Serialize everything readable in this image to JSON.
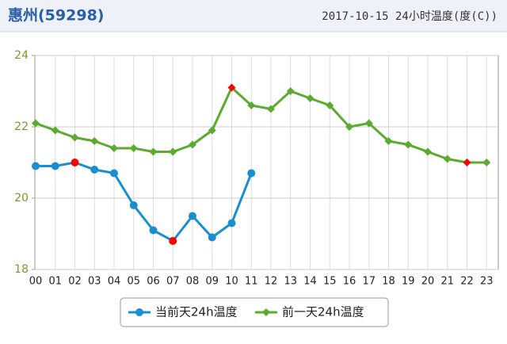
{
  "chart_data": {
    "type": "line",
    "title": "惠州(59298)",
    "subtitle": "2017-10-15 24小时温度(度(C))",
    "categories": [
      "00",
      "01",
      "02",
      "03",
      "04",
      "05",
      "06",
      "07",
      "08",
      "09",
      "10",
      "11",
      "12",
      "13",
      "14",
      "15",
      "16",
      "17",
      "18",
      "19",
      "20",
      "21",
      "22",
      "23"
    ],
    "series": [
      {
        "name": "当前天24h温度",
        "color": "#1a8fcf",
        "values": [
          20.9,
          20.9,
          21.0,
          20.8,
          20.7,
          19.8,
          19.1,
          18.8,
          19.5,
          18.9,
          19.3,
          20.7,
          null,
          null,
          null,
          null,
          null,
          null,
          null,
          null,
          null,
          null,
          null,
          null
        ]
      },
      {
        "name": "前一天24h温度",
        "color": "#5aab2e",
        "values": [
          22.1,
          21.9,
          21.7,
          21.6,
          21.4,
          21.4,
          21.3,
          21.3,
          21.5,
          21.9,
          23.1,
          22.6,
          22.5,
          23.0,
          22.8,
          22.6,
          22.0,
          22.1,
          21.6,
          21.5,
          21.3,
          21.1,
          21.0,
          21.0
        ]
      }
    ],
    "extreme_color": "#ff0000",
    "ylim": [
      18,
      24
    ],
    "yticks": [
      18,
      20,
      22,
      24
    ],
    "grid": true,
    "legend": "bottom"
  }
}
